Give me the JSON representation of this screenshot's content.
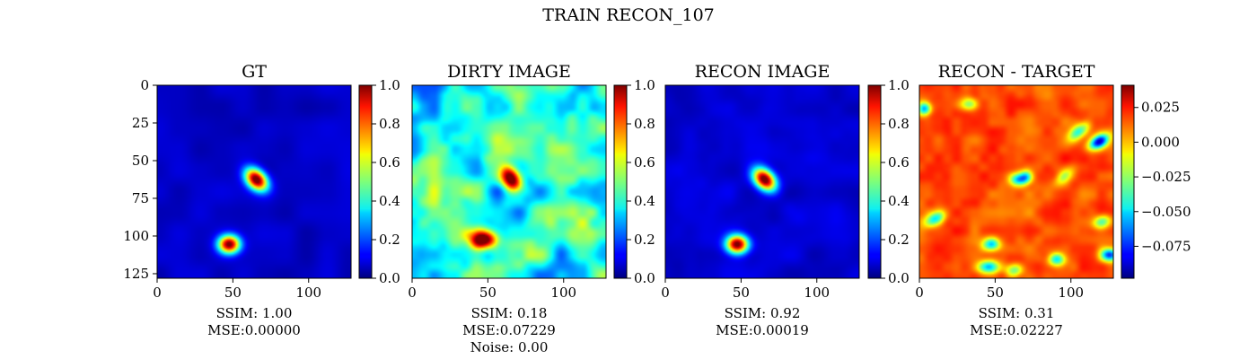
{
  "figure": {
    "suptitle": "TRAIN RECON_107"
  },
  "chart_data": [
    {
      "type": "heatmap",
      "title": "GT",
      "image_description": "jet colormap, dark-blue background with two red Gaussian blobs near (65,62) and (47,105)",
      "x_ticks": [
        "0",
        "50",
        "100"
      ],
      "y_ticks": [
        "0",
        "25",
        "50",
        "75",
        "100",
        "125"
      ],
      "xlim": [
        0,
        128
      ],
      "ylim": [
        128,
        0
      ],
      "colorbar": {
        "colormap": "jet",
        "range": [
          0.0,
          1.0
        ],
        "ticks": [
          "0.0",
          "0.2",
          "0.4",
          "0.6",
          "0.8",
          "1.0"
        ]
      },
      "blobs": [
        {
          "x": 65,
          "y": 62,
          "amplitude": 1.0,
          "sx": 6.0,
          "sy": 4.2,
          "angle": 45
        },
        {
          "x": 47,
          "y": 105,
          "amplitude": 0.95,
          "sx": 5.0,
          "sy": 4.2,
          "angle": 0
        }
      ],
      "stats": [
        "SSIM: 1.00",
        "MSE:0.00000"
      ]
    },
    {
      "type": "heatmap",
      "title": "DIRTY IMAGE",
      "image_description": "jet colormap, noisy cyan/blue field with red blobs near (65,62) and (47,102)",
      "x_ticks": [
        "0",
        "50",
        "100"
      ],
      "xlim": [
        0,
        128
      ],
      "ylim": [
        128,
        0
      ],
      "colorbar": {
        "colormap": "jet",
        "range": [
          0.0,
          1.0
        ],
        "ticks": [
          "0.0",
          "0.2",
          "0.4",
          "0.6",
          "0.8",
          "1.0"
        ]
      },
      "blobs": [
        {
          "x": 65,
          "y": 62,
          "amplitude": 1.0,
          "sx": 6.0,
          "sy": 4.2,
          "angle": 60
        },
        {
          "x": 47,
          "y": 102,
          "amplitude": 0.95,
          "sx": 6.0,
          "sy": 4.0,
          "angle": 0
        }
      ],
      "stats": [
        "SSIM: 0.18",
        "MSE:0.07229",
        "Noise: 0.00"
      ]
    },
    {
      "type": "heatmap",
      "title": "RECON IMAGE",
      "image_description": "jet colormap, dark-blue background with two red blobs near (65,62) and (47,105)",
      "x_ticks": [
        "0",
        "50",
        "100"
      ],
      "xlim": [
        0,
        128
      ],
      "ylim": [
        128,
        0
      ],
      "colorbar": {
        "colormap": "jet",
        "range": [
          0.0,
          1.0
        ],
        "ticks": [
          "0.0",
          "0.2",
          "0.4",
          "0.6",
          "0.8",
          "1.0"
        ]
      },
      "blobs": [
        {
          "x": 65,
          "y": 62,
          "amplitude": 1.0,
          "sx": 6.0,
          "sy": 4.2,
          "angle": 45
        },
        {
          "x": 47,
          "y": 105,
          "amplitude": 0.95,
          "sx": 5.0,
          "sy": 4.2,
          "angle": 0
        }
      ],
      "stats": [
        "SSIM: 0.92",
        "MSE:0.00019"
      ]
    },
    {
      "type": "heatmap",
      "title": "RECON - TARGET",
      "image_description": "jet colormap, mostly orange/red residual with scattered cyan/blue ellipses",
      "x_ticks": [
        "0",
        "50",
        "100"
      ],
      "xlim": [
        0,
        128
      ],
      "ylim": [
        128,
        0
      ],
      "colorbar": {
        "colormap": "jet",
        "range": [
          -0.098,
          0.041
        ],
        "ticks": [
          "0.025",
          "0.000",
          "−0.025",
          "−0.050",
          "−0.075"
        ],
        "tick_values": [
          0.025,
          0.0,
          -0.025,
          -0.05,
          -0.075
        ]
      },
      "dips": [
        {
          "x": 118,
          "y": 37,
          "amplitude": 1.0,
          "sx": 5,
          "sy": 3,
          "angle": -30
        },
        {
          "x": 125,
          "y": 112,
          "amplitude": 0.9,
          "sx": 4,
          "sy": 3,
          "angle": 0
        },
        {
          "x": 45,
          "y": 120,
          "amplitude": 0.7,
          "sx": 5,
          "sy": 3,
          "angle": 0
        },
        {
          "x": 10,
          "y": 88,
          "amplitude": 0.6,
          "sx": 5,
          "sy": 3,
          "angle": -30
        },
        {
          "x": 105,
          "y": 30,
          "amplitude": 0.55,
          "sx": 6,
          "sy": 3,
          "angle": -40
        },
        {
          "x": 47,
          "y": 105,
          "amplitude": 0.7,
          "sx": 4,
          "sy": 3,
          "angle": 0
        },
        {
          "x": 65,
          "y": 62,
          "amplitude": 0.7,
          "sx": 4,
          "sy": 3,
          "angle": 0
        },
        {
          "x": 90,
          "y": 115,
          "amplitude": 0.6,
          "sx": 4,
          "sy": 3,
          "angle": 0
        },
        {
          "x": 120,
          "y": 90,
          "amplitude": 0.5,
          "sx": 4,
          "sy": 3,
          "angle": -20
        },
        {
          "x": 70,
          "y": 60,
          "amplitude": 0.5,
          "sx": 3,
          "sy": 3,
          "angle": 0
        },
        {
          "x": 3,
          "y": 15,
          "amplitude": 0.7,
          "sx": 3,
          "sy": 3,
          "angle": 0
        },
        {
          "x": 32,
          "y": 12,
          "amplitude": 0.45,
          "sx": 4,
          "sy": 3,
          "angle": 0
        },
        {
          "x": 95,
          "y": 60,
          "amplitude": 0.4,
          "sx": 5,
          "sy": 3,
          "angle": -40
        },
        {
          "x": 62,
          "y": 122,
          "amplitude": 0.5,
          "sx": 4,
          "sy": 3,
          "angle": 0
        }
      ],
      "stats": [
        "SSIM: 0.31",
        "MSE:0.02227"
      ]
    }
  ]
}
